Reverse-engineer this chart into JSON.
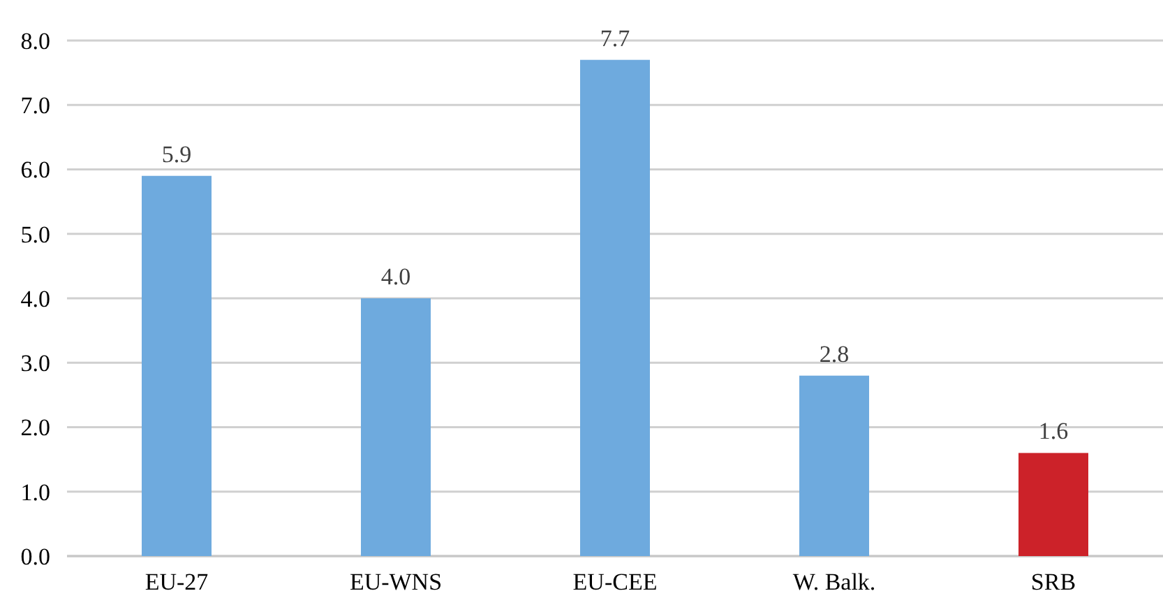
{
  "chart_data": {
    "type": "bar",
    "categories": [
      "EU-27",
      "EU-WNS",
      "EU-CEE",
      "W. Balk.",
      "SRB"
    ],
    "values": [
      5.9,
      4.0,
      7.7,
      2.8,
      1.6
    ],
    "colors": [
      "#6eaade",
      "#6eaade",
      "#6eaade",
      "#6eaade",
      "#cc2229"
    ],
    "value_labels": [
      "5.9",
      "4.0",
      "7.7",
      "2.8",
      "1.6"
    ],
    "ylim": [
      0,
      8
    ],
    "yticks": [
      {
        "value": 0,
        "label": "0.0"
      },
      {
        "value": 1,
        "label": "1.0"
      },
      {
        "value": 2,
        "label": "2.0"
      },
      {
        "value": 3,
        "label": "3.0"
      },
      {
        "value": 4,
        "label": "4.0"
      },
      {
        "value": 5,
        "label": "5.0"
      },
      {
        "value": 6,
        "label": "6.0"
      },
      {
        "value": 7,
        "label": "7.0"
      },
      {
        "value": 8,
        "label": "8.0"
      }
    ],
    "grid": "y"
  }
}
